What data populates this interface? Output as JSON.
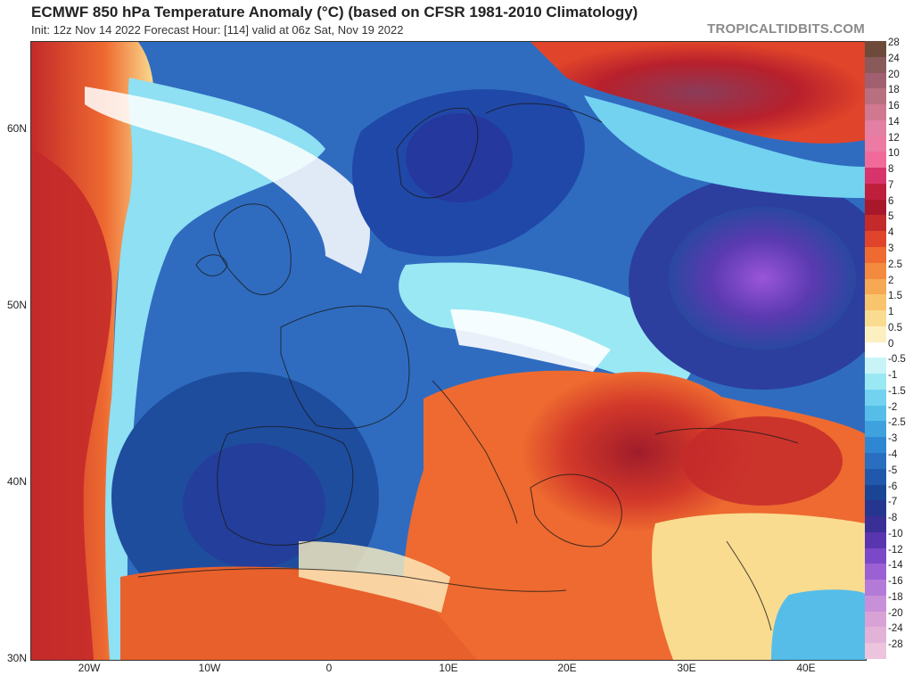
{
  "header": {
    "title": "ECMWF 850 hPa Temperature Anomaly (°C) (based on CFSR 1981-2010 Climatology)",
    "subtitle": "Init: 12z Nov 14 2022   Forecast Hour: [114]   valid at 06z Sat, Nov 19 2022",
    "brand": "TROPICALTIDBITS.COM"
  },
  "axes": {
    "lat_labels": [
      "60N",
      "50N",
      "40N",
      "30N"
    ],
    "lon_labels": [
      "20W",
      "10W",
      "0",
      "10E",
      "20E",
      "30E",
      "40E"
    ]
  },
  "colors": {
    "strong_cold": "#8a3fd0",
    "cold": "#1f4fa6",
    "cool": "#5aa8e8",
    "neutral": "#ffffff",
    "warm": "#e8602c",
    "hot": "#b0202a"
  },
  "legend": {
    "entries": [
      {
        "label": "28",
        "color": "#6e4a3a"
      },
      {
        "label": "24",
        "color": "#8a5a5a"
      },
      {
        "label": "20",
        "color": "#a06070"
      },
      {
        "label": "18",
        "color": "#b87080"
      },
      {
        "label": "16",
        "color": "#d07890"
      },
      {
        "label": "14",
        "color": "#e27fa2"
      },
      {
        "label": "12",
        "color": "#ec7aa3"
      },
      {
        "label": "10",
        "color": "#f06b9a"
      },
      {
        "label": "8",
        "color": "#d8336a"
      },
      {
        "label": "7",
        "color": "#c01f3c"
      },
      {
        "label": "6",
        "color": "#a8182a"
      },
      {
        "label": "5",
        "color": "#c42a2a"
      },
      {
        "label": "4",
        "color": "#e0442a"
      },
      {
        "label": "3",
        "color": "#ee6a30"
      },
      {
        "label": "2.5",
        "color": "#f38a3e"
      },
      {
        "label": "2",
        "color": "#f6a852"
      },
      {
        "label": "1.5",
        "color": "#f9c46e"
      },
      {
        "label": "1",
        "color": "#fadc90"
      },
      {
        "label": "0.5",
        "color": "#fdf0c0"
      },
      {
        "label": "0",
        "color": "#ffffff"
      },
      {
        "label": "-0.5",
        "color": "#c8f4f8"
      },
      {
        "label": "-1",
        "color": "#9ae8f4"
      },
      {
        "label": "-1.5",
        "color": "#72d2f0"
      },
      {
        "label": "-2",
        "color": "#56bde9"
      },
      {
        "label": "-2.5",
        "color": "#3fa2df"
      },
      {
        "label": "-3",
        "color": "#2f87d2"
      },
      {
        "label": "-4",
        "color": "#2a6ec0"
      },
      {
        "label": "-5",
        "color": "#2158ab"
      },
      {
        "label": "-6",
        "color": "#1a4594"
      },
      {
        "label": "-7",
        "color": "#263690"
      },
      {
        "label": "-8",
        "color": "#3a2f96"
      },
      {
        "label": "-10",
        "color": "#5a35b0"
      },
      {
        "label": "-12",
        "color": "#7a48c8"
      },
      {
        "label": "-14",
        "color": "#9a60d4"
      },
      {
        "label": "-16",
        "color": "#b47ad8"
      },
      {
        "label": "-18",
        "color": "#c890d8"
      },
      {
        "label": "-20",
        "color": "#d9a2d6"
      },
      {
        "label": "-24",
        "color": "#e3b2d8"
      },
      {
        "label": "-28",
        "color": "#ecc4de"
      }
    ]
  }
}
